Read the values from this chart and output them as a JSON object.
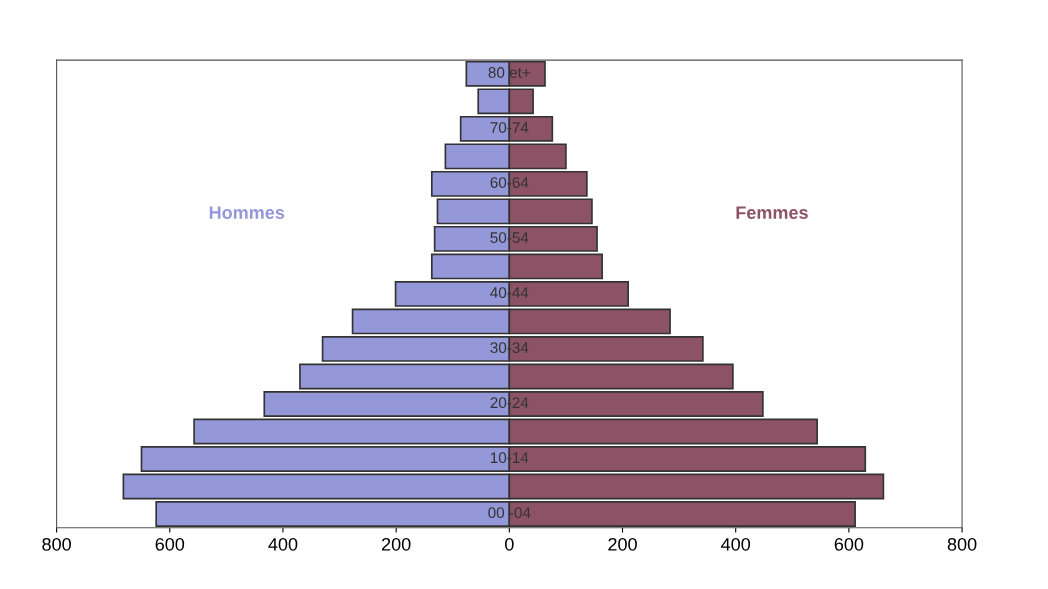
{
  "chart_data": {
    "type": "bar",
    "orientation": "horizontal",
    "stacked": true,
    "categories": [
      "80 et+",
      null,
      "70-74",
      null,
      "60-64",
      null,
      "50-54",
      null,
      "40-44",
      null,
      "30-34",
      null,
      "20-24",
      null,
      "10-14",
      null,
      "00 -04"
    ],
    "series": [
      {
        "name": "Hommes",
        "color": "#9497d8",
        "values": [
          -76,
          -55,
          -86,
          -113,
          -137,
          -127,
          -132,
          -137,
          -201,
          -277,
          -330,
          -370,
          -433,
          -557,
          -650,
          -682,
          -624
        ]
      },
      {
        "name": "Femmes",
        "color": "#8c5366",
        "values": [
          63,
          42,
          76,
          100,
          137,
          146,
          155,
          164,
          210,
          284,
          342,
          395,
          448,
          544,
          629,
          661,
          611
        ]
      }
    ],
    "xlim": [
      -800,
      800
    ],
    "xticks": [
      {
        "value": -800,
        "label": "800"
      },
      {
        "value": -600,
        "label": "600"
      },
      {
        "value": -400,
        "label": "400"
      },
      {
        "value": -200,
        "label": "200"
      },
      0,
      200,
      400,
      600,
      800
    ],
    "grid": false,
    "legend": false
  }
}
